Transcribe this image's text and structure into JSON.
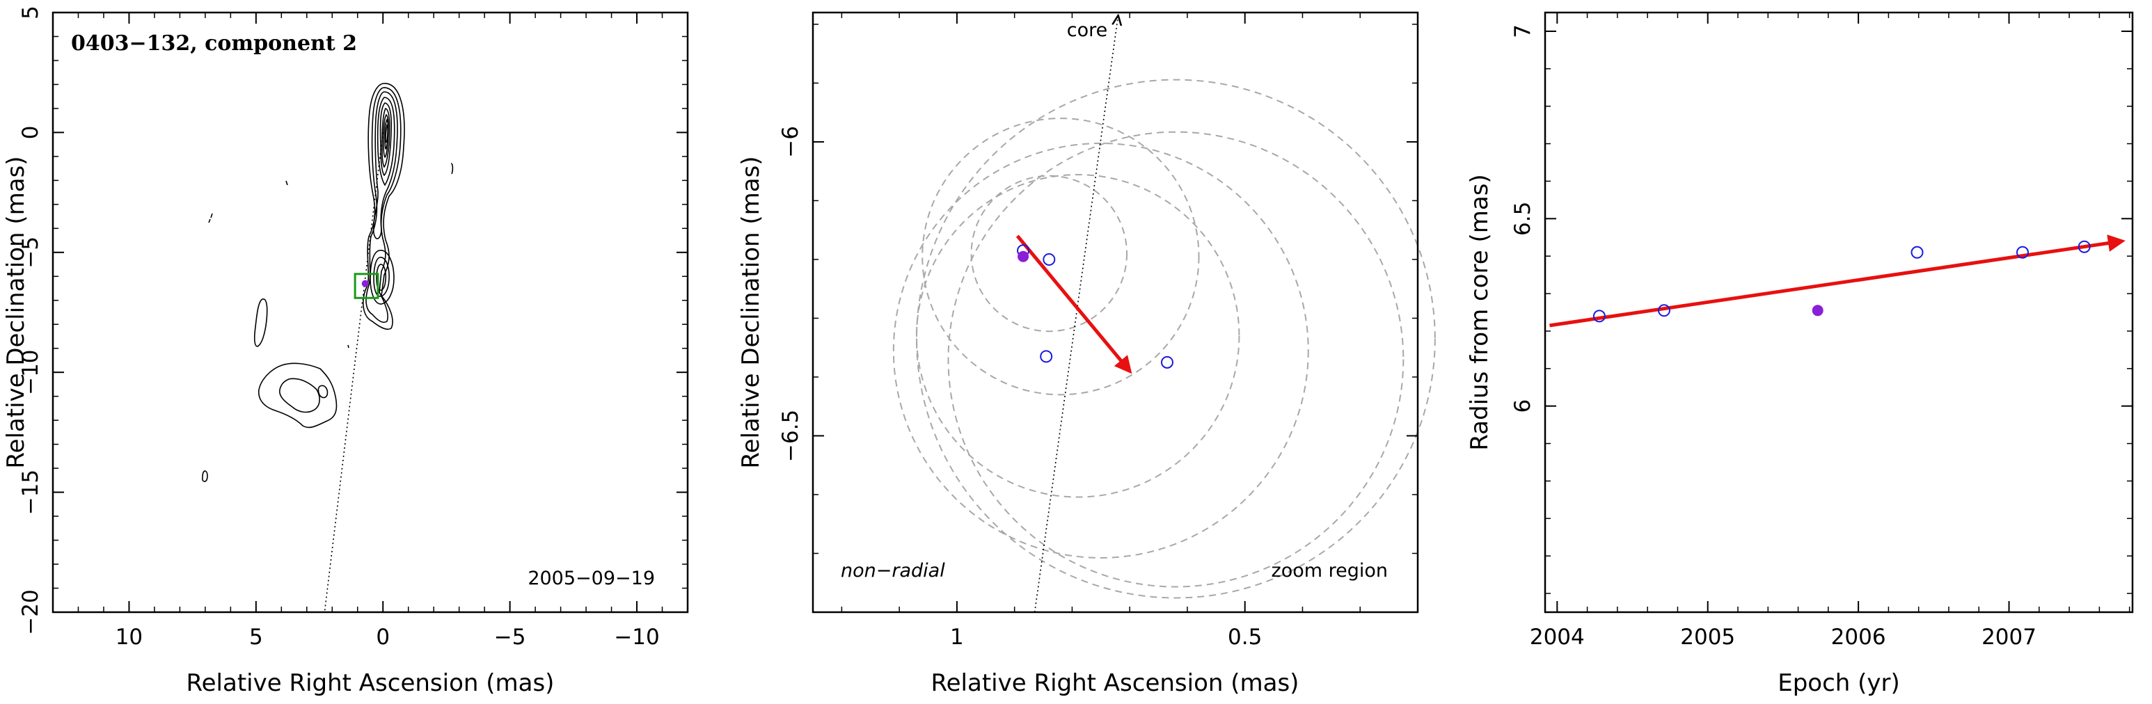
{
  "chart_data": [
    {
      "type": "contour",
      "title": "0403−132, component 2",
      "date_label": "2005−09−19",
      "xlabel": "Relative Right Ascension (mas)",
      "ylabel": "Relative Declination (mas)",
      "xlim": [
        13,
        -12
      ],
      "ylim": [
        -20,
        5
      ],
      "xticks": [
        10,
        5,
        0,
        -5,
        -10
      ],
      "xtick_labels": [
        "10",
        "5",
        "0",
        "−5",
        "−10"
      ],
      "yticks": [
        5,
        0,
        -5,
        -10,
        -15,
        -20
      ],
      "ytick_labels": [
        "5",
        "0",
        "−5",
        "−10",
        "−15",
        "−20"
      ],
      "core_position": [
        0,
        0
      ],
      "component_position": [
        0.7,
        -6.3
      ],
      "jet_line": {
        "from": [
          0,
          0
        ],
        "to": [
          2.3,
          -20
        ]
      },
      "zoom_box": {
        "x": [
          1.1,
          0.2
        ],
        "y": [
          -5.9,
          -6.9
        ]
      },
      "colors": {
        "contours": "#000000",
        "box": "#1a9a1a",
        "marker": "#8a1fd8"
      }
    },
    {
      "type": "scatter",
      "annotation_left": "non−radial",
      "annotation_right": "zoom region",
      "core_label": "core",
      "xlabel": "Relative Right Ascension (mas)",
      "ylabel": "Relative Declination (mas)",
      "xlim": [
        1.25,
        0.2
      ],
      "ylim": [
        -6.8,
        -5.78
      ],
      "xticks": [
        1,
        0.5
      ],
      "xtick_labels": [
        "1",
        "0.5"
      ],
      "yticks": [
        -6,
        -6.5
      ],
      "ytick_labels": [
        "−6",
        "−6.5"
      ],
      "points_open": [
        [
          0.885,
          -6.185
        ],
        [
          0.84,
          -6.2
        ],
        [
          0.845,
          -6.365
        ],
        [
          0.635,
          -6.375
        ]
      ],
      "point_filled": [
        0.885,
        -6.195
      ],
      "error_circles": [
        {
          "center": [
            0.84,
            -6.19
          ],
          "radius": 0.135
        },
        {
          "center": [
            0.82,
            -6.195
          ],
          "radius": 0.24
        },
        {
          "center": [
            0.79,
            -6.33
          ],
          "radius": 0.28
        },
        {
          "center": [
            0.75,
            -6.355
          ],
          "radius": 0.36
        },
        {
          "center": [
            0.62,
            -6.37
          ],
          "radius": 0.395
        },
        {
          "center": [
            0.62,
            -6.335
          ],
          "radius": 0.45
        }
      ],
      "motion_vector": {
        "from": [
          0.895,
          -6.16
        ],
        "to": [
          0.7,
          -6.39
        ]
      },
      "core_direction": {
        "from": [
          0.865,
          -6.8
        ],
        "to": [
          0.72,
          -5.78
        ]
      },
      "colors": {
        "open_points": "#1a1adf",
        "filled_point": "#8a1fd8",
        "vector": "#e81010",
        "circles": "#a8a8a8"
      }
    },
    {
      "type": "scatter",
      "xlabel": "Epoch (yr)",
      "ylabel": "Radius from core (mas)",
      "xlim": [
        2003.92,
        2007.82
      ],
      "ylim": [
        5.45,
        7.05
      ],
      "xticks": [
        2004,
        2005,
        2006,
        2007
      ],
      "xtick_labels": [
        "2004",
        "2005",
        "2006",
        "2007"
      ],
      "yticks": [
        6,
        6.5,
        7
      ],
      "ytick_labels": [
        "6",
        "6.5",
        "7"
      ],
      "points_open": [
        [
          2004.28,
          6.24
        ],
        [
          2004.71,
          6.255
        ],
        [
          2006.39,
          6.41
        ],
        [
          2007.09,
          6.41
        ],
        [
          2007.5,
          6.425
        ]
      ],
      "point_filled": [
        2005.73,
        6.255
      ],
      "trend_vector": {
        "from": [
          2003.95,
          6.215
        ],
        "to": [
          2007.75,
          6.44
        ]
      },
      "colors": {
        "open_points": "#1a1adf",
        "filled_point": "#8a1fd8",
        "vector": "#e81010"
      }
    }
  ]
}
